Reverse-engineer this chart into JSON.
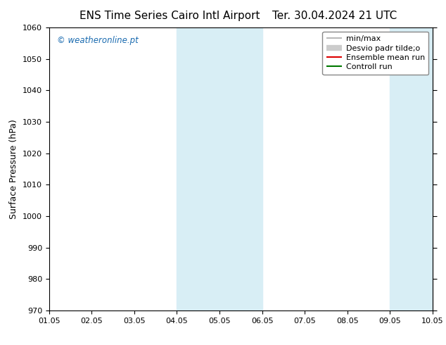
{
  "title_left": "ENS Time Series Cairo Intl Airport",
  "title_right": "Ter. 30.04.2024 21 UTC",
  "ylabel": "Surface Pressure (hPa)",
  "ylim": [
    970,
    1060
  ],
  "yticks": [
    970,
    980,
    990,
    1000,
    1010,
    1020,
    1030,
    1040,
    1050,
    1060
  ],
  "xlim": [
    0,
    9
  ],
  "xtick_labels": [
    "01.05",
    "02.05",
    "03.05",
    "04.05",
    "05.05",
    "06.05",
    "07.05",
    "08.05",
    "09.05",
    "10.05"
  ],
  "xtick_positions": [
    0,
    1,
    2,
    3,
    4,
    5,
    6,
    7,
    8,
    9
  ],
  "shade_bands": [
    {
      "xmin": 3.0,
      "xmax": 4.0,
      "color": "#d8eef5"
    },
    {
      "xmin": 4.0,
      "xmax": 5.0,
      "color": "#d8eef5"
    },
    {
      "xmin": 8.0,
      "xmax": 9.0,
      "color": "#d8eef5"
    }
  ],
  "legend_entries": [
    {
      "label": "min/max",
      "color": "#aaaaaa",
      "lw": 1.2,
      "style": "thin"
    },
    {
      "label": "Desvio padr tilde;o",
      "color": "#cccccc",
      "lw": 6,
      "style": "thick"
    },
    {
      "label": "Ensemble mean run",
      "color": "#dd0000",
      "lw": 1.5,
      "style": "thin"
    },
    {
      "label": "Controll run",
      "color": "#007700",
      "lw": 1.5,
      "style": "thin"
    }
  ],
  "watermark": "© weatheronline.pt",
  "watermark_color": "#1a6bb0",
  "bg_color": "#ffffff",
  "title_fontsize": 11,
  "ylabel_fontsize": 9,
  "tick_fontsize": 8,
  "legend_fontsize": 8,
  "watermark_fontsize": 8.5
}
